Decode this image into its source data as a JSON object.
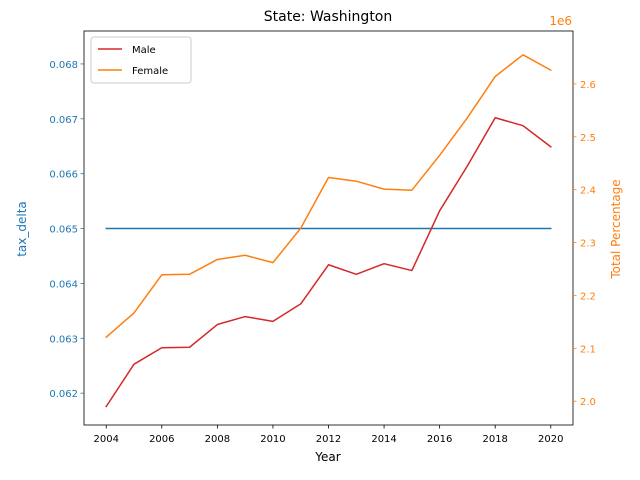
{
  "chart_data": {
    "type": "line",
    "title": "State: Washington",
    "xlabel": "Year",
    "ylabel_left": "tax_delta",
    "ylabel_right": "Total Percentage",
    "right_offset_label": "1e6",
    "left_color": "#1f77b4",
    "right_color": "#ff7f0e",
    "x": [
      2004,
      2005,
      2006,
      2007,
      2008,
      2009,
      2010,
      2011,
      2012,
      2013,
      2014,
      2015,
      2016,
      2017,
      2018,
      2019,
      2020
    ],
    "xticks": [
      2004,
      2006,
      2008,
      2010,
      2012,
      2014,
      2016,
      2018,
      2020
    ],
    "xticklabels": [
      "2004",
      "2006",
      "2008",
      "2010",
      "2012",
      "2014",
      "2016",
      "2018",
      "2020"
    ],
    "xlim": [
      2003.2,
      2020.8
    ],
    "ylim_left": [
      0.06142,
      0.0686
    ],
    "yticks_left": [
      0.062,
      0.063,
      0.064,
      0.065,
      0.066,
      0.067,
      0.068
    ],
    "yticklabels_left": [
      "0.062",
      "0.063",
      "0.064",
      "0.065",
      "0.066",
      "0.067",
      "0.068"
    ],
    "ylim_right": [
      1.955,
      2.7
    ],
    "yticks_right": [
      2.0,
      2.1,
      2.2,
      2.3,
      2.4,
      2.5,
      2.6
    ],
    "yticklabels_right": [
      "2.0",
      "2.1",
      "2.2",
      "2.3",
      "2.4",
      "2.5",
      "2.6"
    ],
    "left_series": [
      {
        "name": "",
        "color": "#1f77b4",
        "values": [
          0.065,
          0.065,
          0.065,
          0.065,
          0.065,
          0.065,
          0.065,
          0.065,
          0.065,
          0.065,
          0.065,
          0.065,
          0.065,
          0.065,
          0.065,
          0.065,
          0.065
        ]
      }
    ],
    "right_series": [
      {
        "name": "Male",
        "color": "#d62728",
        "values": [
          1.99,
          2.07,
          2.101,
          2.102,
          2.145,
          2.16,
          2.151,
          2.184,
          2.258,
          2.24,
          2.26,
          2.247,
          2.36,
          2.445,
          2.536,
          2.521,
          2.481
        ]
      },
      {
        "name": "Female",
        "color": "#ff7f0e",
        "values": [
          2.121,
          2.167,
          2.239,
          2.24,
          2.268,
          2.276,
          2.262,
          2.327,
          2.423,
          2.416,
          2.401,
          2.399,
          2.465,
          2.536,
          2.614,
          2.655,
          2.626
        ]
      }
    ],
    "legend": {
      "placement": "upper-left",
      "entries": [
        "Male",
        "Female"
      ]
    },
    "grid": false
  }
}
